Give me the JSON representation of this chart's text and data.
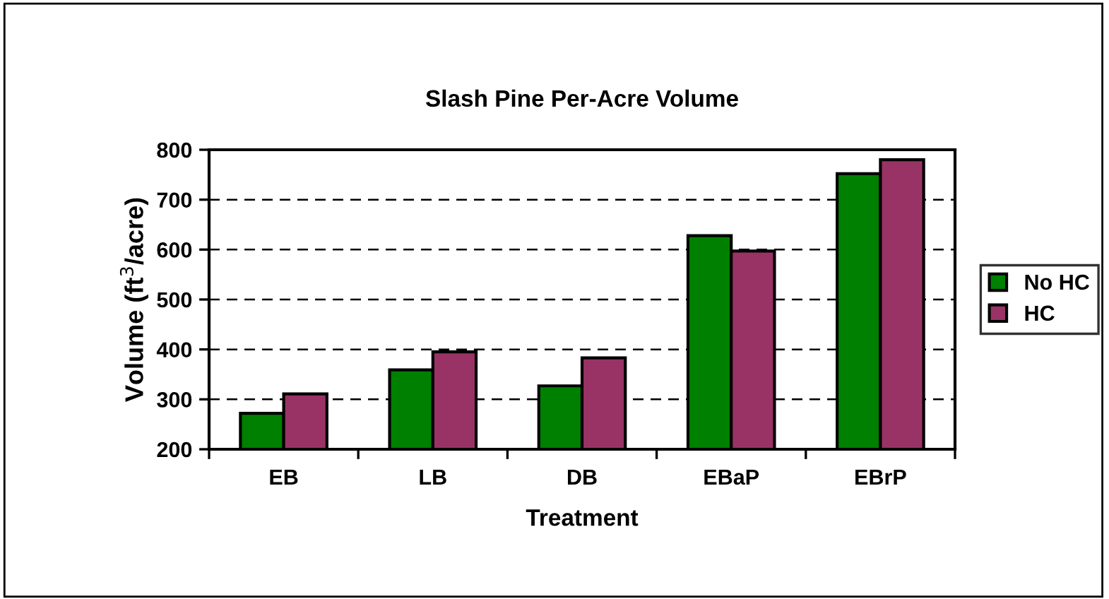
{
  "chart_data": {
    "type": "bar",
    "title": "Slash Pine Per-Acre Volume",
    "xlabel": "Treatment",
    "ylabel": "Volume (ft$^{3}$/acre)",
    "categories": [
      "EB",
      "LB",
      "DB",
      "EBaP",
      "EBrP"
    ],
    "series": [
      {
        "name": "No HC",
        "color": "#008000",
        "values": [
          272,
          359,
          327,
          628,
          752
        ]
      },
      {
        "name": "HC",
        "color": "#993366",
        "values": [
          311,
          395,
          383,
          597,
          780
        ]
      }
    ],
    "ylim": [
      200,
      800
    ],
    "yticks": [
      200,
      300,
      400,
      500,
      600,
      700,
      800
    ],
    "grid": "y",
    "legend": "right"
  }
}
